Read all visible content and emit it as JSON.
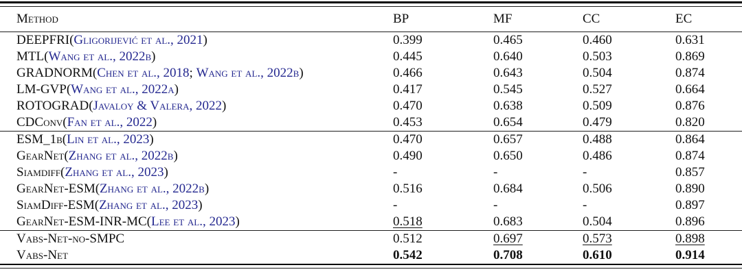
{
  "colors": {
    "citation_blue": "#23278f",
    "text_black": "#111111",
    "background": "#ffffff",
    "rule_black": "#000000"
  },
  "punctuation": {
    "open": "(",
    "close": ")",
    "separator": "; "
  },
  "table": {
    "columns": [
      "Method",
      "BP",
      "MF",
      "CC",
      "EC"
    ],
    "sections": [
      {
        "rows": [
          {
            "name": "DEEPFRI",
            "cites": [
              "Gligorijević et al., 2021"
            ],
            "values": [
              "0.399",
              "0.465",
              "0.460",
              "0.631"
            ],
            "styles": [
              "",
              "",
              "",
              ""
            ]
          },
          {
            "name": "MTL",
            "cites": [
              "Wang et al., 2022b"
            ],
            "values": [
              "0.445",
              "0.640",
              "0.503",
              "0.869"
            ],
            "styles": [
              "",
              "",
              "",
              ""
            ]
          },
          {
            "name": "GRADNORM",
            "cites": [
              "Chen et al., 2018",
              "Wang et al., 2022b"
            ],
            "values": [
              "0.466",
              "0.643",
              "0.504",
              "0.874"
            ],
            "styles": [
              "",
              "",
              "",
              ""
            ]
          },
          {
            "name": "LM-GVP",
            "cites": [
              "Wang et al., 2022a"
            ],
            "values": [
              "0.417",
              "0.545",
              "0.527",
              "0.664"
            ],
            "styles": [
              "",
              "",
              "",
              ""
            ]
          },
          {
            "name": "ROTOGRAD",
            "cites": [
              "Javaloy & Valera, 2022"
            ],
            "values": [
              "0.470",
              "0.638",
              "0.509",
              "0.876"
            ],
            "styles": [
              "",
              "",
              "",
              ""
            ]
          },
          {
            "name": "CDConv",
            "cites": [
              "Fan et al., 2022"
            ],
            "values": [
              "0.453",
              "0.654",
              "0.479",
              "0.820"
            ],
            "styles": [
              "",
              "",
              "",
              ""
            ]
          }
        ]
      },
      {
        "rows": [
          {
            "name": "ESM_1b",
            "cites": [
              "Lin et al., 2023"
            ],
            "values": [
              "0.470",
              "0.657",
              "0.488",
              "0.864"
            ],
            "styles": [
              "",
              "",
              "",
              ""
            ]
          },
          {
            "name": "GearNet",
            "cites": [
              "Zhang et al., 2022b"
            ],
            "values": [
              "0.490",
              "0.650",
              "0.486",
              "0.874"
            ],
            "styles": [
              "",
              "",
              "",
              ""
            ]
          },
          {
            "name": "Siamdiff",
            "cites": [
              "Zhang et al., 2023"
            ],
            "values": [
              "-",
              "-",
              "-",
              "0.857"
            ],
            "styles": [
              "",
              "",
              "",
              ""
            ]
          },
          {
            "name": "GearNet-ESM",
            "cites": [
              "Zhang et al., 2022b"
            ],
            "values": [
              "0.516",
              "0.684",
              "0.506",
              "0.890"
            ],
            "styles": [
              "",
              "",
              "",
              ""
            ]
          },
          {
            "name": "SiamDiff-ESM",
            "cites": [
              "Zhang et al., 2023"
            ],
            "values": [
              "-",
              "-",
              "-",
              "0.897"
            ],
            "styles": [
              "",
              "",
              "",
              ""
            ]
          },
          {
            "name": "GearNet-ESM-INR-MC",
            "cites": [
              "Lee et al., 2023"
            ],
            "values": [
              "0.518",
              "0.683",
              "0.504",
              "0.896"
            ],
            "styles": [
              "underline",
              "",
              "",
              ""
            ]
          }
        ]
      },
      {
        "rows": [
          {
            "name": "Vabs-Net-no-SMPC",
            "cites": [],
            "values": [
              "0.512",
              "0.697",
              "0.573",
              "0.898"
            ],
            "styles": [
              "",
              "underline",
              "underline",
              "underline"
            ]
          },
          {
            "name": "Vabs-Net",
            "cites": [],
            "values": [
              "0.542",
              "0.708",
              "0.610",
              "0.914"
            ],
            "styles": [
              "bold",
              "bold",
              "bold",
              "bold"
            ]
          }
        ]
      }
    ]
  }
}
